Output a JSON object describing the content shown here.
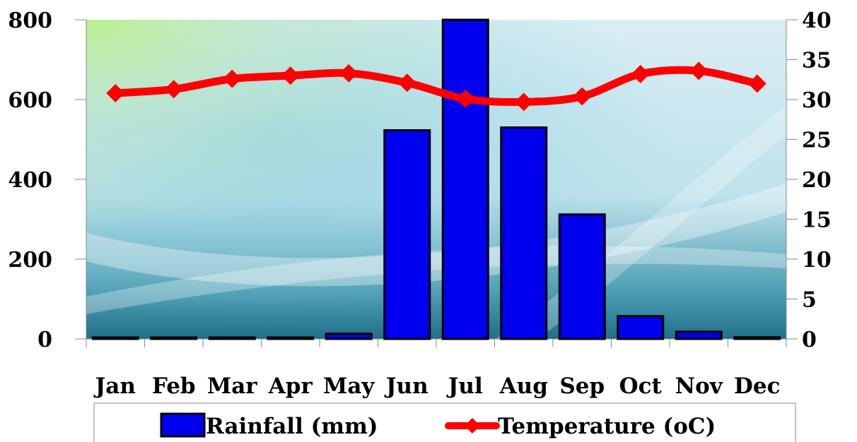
{
  "chart_data": {
    "type": "bar",
    "categories": [
      "Jan",
      "Feb",
      "Mar",
      "Apr",
      "May",
      "Jun",
      "Jul",
      "Aug",
      "Sep",
      "Oct",
      "Nov",
      "Dec"
    ],
    "series": [
      {
        "name": "Rainfall (mm)",
        "type": "bar",
        "axis": "left",
        "color": "#0000ee",
        "values": [
          1,
          2,
          1,
          1,
          13,
          523,
          800,
          530,
          312,
          57,
          18,
          4
        ]
      },
      {
        "name": "Temperature (oC)",
        "type": "line",
        "axis": "right",
        "color": "#ff0000",
        "marker": "diamond",
        "values": [
          30.8,
          31.3,
          32.6,
          33.0,
          33.3,
          32.1,
          30.1,
          29.7,
          30.4,
          33.2,
          33.6,
          32.0
        ]
      }
    ],
    "y_left": {
      "min": 0,
      "max": 800,
      "ticks": [
        0,
        200,
        400,
        600,
        800
      ]
    },
    "y_right": {
      "min": 0,
      "max": 40,
      "ticks": [
        0,
        5,
        10,
        15,
        20,
        25,
        30,
        35,
        40
      ]
    },
    "legend": {
      "position": "bottom",
      "items": [
        "Rainfall (mm)",
        "Temperature (oC)"
      ]
    },
    "grid": false
  }
}
